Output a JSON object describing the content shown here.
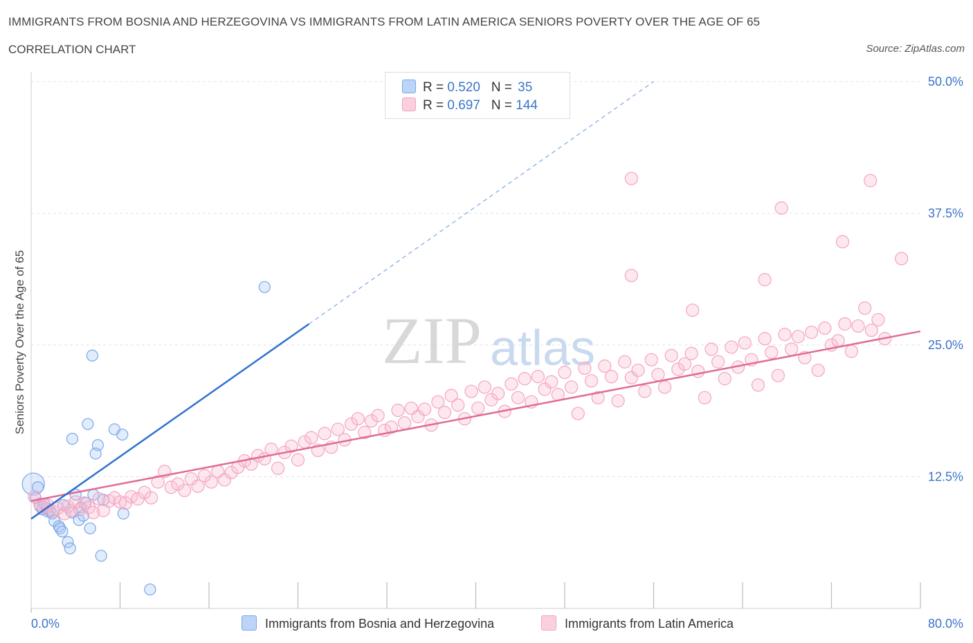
{
  "title": "IMMIGRANTS FROM BOSNIA AND HERZEGOVINA VS IMMIGRANTS FROM LATIN AMERICA SENIORS POVERTY OVER THE AGE OF 65",
  "subtitle": "CORRELATION CHART",
  "source": "Source: ZipAtlas.com",
  "watermark": {
    "zip": "ZIP",
    "atlas": "atlas"
  },
  "legend": {
    "rows": [
      {
        "r_label": "R = ",
        "r_value": "0.520",
        "n_label": "N = ",
        "n_value": "35",
        "color": "#aecbf5"
      },
      {
        "r_label": "R = ",
        "r_value": "0.697",
        "n_label": "N = ",
        "n_value": "144",
        "color": "#f7bdd0"
      }
    ]
  },
  "chart_data": {
    "type": "scatter",
    "xlabel": "",
    "ylabel": "Seniors Poverty Over the Age of 65",
    "xlim": [
      0,
      80
    ],
    "ylim": [
      0,
      50
    ],
    "x_tick_labels": [
      {
        "v": 0,
        "label": "0.0%"
      },
      {
        "v": 80,
        "label": "80.0%"
      }
    ],
    "y_tick_labels": [
      {
        "v": 12.5,
        "label": "12.5%"
      },
      {
        "v": 25,
        "label": "25.0%"
      },
      {
        "v": 37.5,
        "label": "37.5%"
      },
      {
        "v": 50,
        "label": "50.0%"
      }
    ],
    "grid": true,
    "series": [
      {
        "name": "Immigrants from Bosnia and Herzegovina",
        "color": "#7aa7e6",
        "line_color": "#2f6fcf",
        "trend": {
          "x0": 0,
          "y0": 8.5,
          "x1": 25,
          "y1": 27,
          "dash_x1": 56,
          "dash_y1": 50
        },
        "points": [
          [
            0.2,
            11.8,
            16
          ],
          [
            0.4,
            10.5,
            8
          ],
          [
            0.6,
            11.5,
            8
          ],
          [
            0.8,
            9.7,
            8
          ],
          [
            1.0,
            9.4,
            8
          ],
          [
            1.2,
            9.9,
            8
          ],
          [
            1.4,
            9.5,
            8
          ],
          [
            1.5,
            9.2,
            8
          ],
          [
            1.7,
            9.3,
            8
          ],
          [
            1.9,
            9.0,
            8
          ],
          [
            2.1,
            8.3,
            8
          ],
          [
            2.5,
            7.8,
            8
          ],
          [
            2.6,
            7.6,
            8
          ],
          [
            2.8,
            7.3,
            8
          ],
          [
            2.9,
            9.8,
            8
          ],
          [
            3.3,
            6.3,
            8
          ],
          [
            3.5,
            5.7,
            8
          ],
          [
            3.7,
            9.1,
            8
          ],
          [
            4.0,
            10.8,
            8
          ],
          [
            4.3,
            8.4,
            8
          ],
          [
            4.5,
            9.6,
            8
          ],
          [
            4.7,
            8.8,
            8
          ],
          [
            4.9,
            10.0,
            8
          ],
          [
            5.1,
            17.5,
            8
          ],
          [
            5.3,
            7.6,
            8
          ],
          [
            5.6,
            10.8,
            8
          ],
          [
            6.0,
            15.5,
            8
          ],
          [
            6.3,
            5.0,
            8
          ],
          [
            6.5,
            10.3,
            8
          ],
          [
            5.8,
            14.7,
            8
          ],
          [
            3.7,
            16.1,
            8
          ],
          [
            5.5,
            24.0,
            8
          ],
          [
            7.5,
            17.0,
            8
          ],
          [
            8.3,
            9.0,
            8
          ],
          [
            10.7,
            1.8,
            8
          ],
          [
            21.0,
            30.5,
            8
          ],
          [
            8.2,
            16.5,
            8
          ]
        ]
      },
      {
        "name": "Immigrants from Latin America",
        "color": "#f4a3bf",
        "line_color": "#e06b96",
        "trend": {
          "x0": 0,
          "y0": 10.2,
          "x1": 80,
          "y1": 26.3
        },
        "points": [
          [
            0.3,
            10.6,
            9
          ],
          [
            0.8,
            9.9,
            9
          ],
          [
            1.1,
            9.6,
            9
          ],
          [
            1.5,
            9.8,
            9
          ],
          [
            2.0,
            9.2,
            9
          ],
          [
            2.4,
            9.5,
            9
          ],
          [
            3.0,
            9.0,
            9
          ],
          [
            3.3,
            9.7,
            9
          ],
          [
            3.6,
            9.3,
            9
          ],
          [
            4.0,
            10.1,
            9
          ],
          [
            4.4,
            9.4,
            9
          ],
          [
            4.8,
            10.0,
            9
          ],
          [
            5.2,
            9.6,
            9
          ],
          [
            5.6,
            9.1,
            9
          ],
          [
            6.1,
            10.4,
            9
          ],
          [
            6.5,
            9.3,
            9
          ],
          [
            7.0,
            10.2,
            9
          ],
          [
            7.5,
            10.5,
            9
          ],
          [
            8.0,
            10.1,
            9
          ],
          [
            8.5,
            10.0,
            9
          ],
          [
            9.0,
            10.6,
            9
          ],
          [
            9.6,
            10.4,
            9
          ],
          [
            10.2,
            11.0,
            9
          ],
          [
            10.8,
            10.5,
            9
          ],
          [
            11.4,
            12.0,
            9
          ],
          [
            12.0,
            13.0,
            9
          ],
          [
            12.6,
            11.5,
            9
          ],
          [
            13.2,
            11.8,
            9
          ],
          [
            13.8,
            11.2,
            9
          ],
          [
            14.4,
            12.3,
            9
          ],
          [
            15.0,
            11.6,
            9
          ],
          [
            15.6,
            12.6,
            9
          ],
          [
            16.2,
            12.0,
            9
          ],
          [
            16.8,
            13.0,
            9
          ],
          [
            17.4,
            12.2,
            9
          ],
          [
            18.0,
            12.9,
            9
          ],
          [
            18.6,
            13.4,
            9
          ],
          [
            19.2,
            14.0,
            9
          ],
          [
            19.8,
            13.7,
            9
          ],
          [
            20.4,
            14.5,
            9
          ],
          [
            21.0,
            14.2,
            9
          ],
          [
            21.6,
            15.1,
            9
          ],
          [
            22.2,
            13.3,
            9
          ],
          [
            22.8,
            14.8,
            9
          ],
          [
            23.4,
            15.4,
            9
          ],
          [
            24.0,
            14.1,
            9
          ],
          [
            24.6,
            15.8,
            9
          ],
          [
            25.2,
            16.2,
            9
          ],
          [
            25.8,
            15.0,
            9
          ],
          [
            26.4,
            16.6,
            9
          ],
          [
            27.0,
            15.3,
            9
          ],
          [
            27.6,
            17.0,
            9
          ],
          [
            28.2,
            16.0,
            9
          ],
          [
            28.8,
            17.5,
            9
          ],
          [
            29.4,
            18.0,
            9
          ],
          [
            30.0,
            16.7,
            9
          ],
          [
            30.6,
            17.8,
            9
          ],
          [
            31.2,
            18.3,
            9
          ],
          [
            31.8,
            16.9,
            9
          ],
          [
            32.4,
            17.2,
            9
          ],
          [
            33.0,
            18.8,
            9
          ],
          [
            33.6,
            17.6,
            9
          ],
          [
            34.2,
            19.0,
            9
          ],
          [
            34.8,
            18.2,
            9
          ],
          [
            35.4,
            18.9,
            9
          ],
          [
            36.0,
            17.4,
            9
          ],
          [
            36.6,
            19.6,
            9
          ],
          [
            37.2,
            18.6,
            9
          ],
          [
            37.8,
            20.2,
            9
          ],
          [
            38.4,
            19.3,
            9
          ],
          [
            39.0,
            18.0,
            9
          ],
          [
            39.6,
            20.6,
            9
          ],
          [
            40.2,
            19.0,
            9
          ],
          [
            40.8,
            21.0,
            9
          ],
          [
            41.4,
            19.8,
            9
          ],
          [
            42.0,
            20.4,
            9
          ],
          [
            42.6,
            18.7,
            9
          ],
          [
            43.2,
            21.3,
            9
          ],
          [
            43.8,
            20.0,
            9
          ],
          [
            44.4,
            21.8,
            9
          ],
          [
            45.0,
            19.6,
            9
          ],
          [
            45.6,
            22.0,
            9
          ],
          [
            46.2,
            20.8,
            9
          ],
          [
            46.8,
            21.5,
            9
          ],
          [
            47.4,
            20.3,
            9
          ],
          [
            48.0,
            22.4,
            9
          ],
          [
            48.6,
            21.0,
            9
          ],
          [
            49.2,
            18.5,
            9
          ],
          [
            49.8,
            22.8,
            9
          ],
          [
            50.4,
            21.6,
            9
          ],
          [
            51.0,
            20.0,
            9
          ],
          [
            51.6,
            23.0,
            9
          ],
          [
            52.2,
            22.0,
            9
          ],
          [
            52.8,
            19.7,
            9
          ],
          [
            53.4,
            23.4,
            9
          ],
          [
            54.0,
            21.9,
            9
          ],
          [
            54.6,
            22.6,
            9
          ],
          [
            55.2,
            20.6,
            9
          ],
          [
            55.8,
            23.6,
            9
          ],
          [
            56.4,
            22.2,
            9
          ],
          [
            57.0,
            21.0,
            9
          ],
          [
            57.6,
            24.0,
            9
          ],
          [
            58.2,
            22.7,
            9
          ],
          [
            58.8,
            23.2,
            9
          ],
          [
            59.4,
            24.2,
            9
          ],
          [
            60.0,
            22.5,
            9
          ],
          [
            60.6,
            20.0,
            9
          ],
          [
            61.2,
            24.6,
            9
          ],
          [
            61.8,
            23.4,
            9
          ],
          [
            62.4,
            21.8,
            9
          ],
          [
            63.0,
            24.8,
            9
          ],
          [
            63.6,
            22.9,
            9
          ],
          [
            64.2,
            25.2,
            9
          ],
          [
            64.8,
            23.6,
            9
          ],
          [
            65.4,
            21.2,
            9
          ],
          [
            66.0,
            25.6,
            9
          ],
          [
            66.6,
            24.3,
            9
          ],
          [
            67.2,
            22.1,
            9
          ],
          [
            67.8,
            26.0,
            9
          ],
          [
            68.4,
            24.6,
            9
          ],
          [
            69.0,
            25.8,
            9
          ],
          [
            69.6,
            23.8,
            9
          ],
          [
            70.2,
            26.2,
            9
          ],
          [
            70.8,
            22.6,
            9
          ],
          [
            71.4,
            26.6,
            9
          ],
          [
            72.0,
            25.0,
            9
          ],
          [
            72.6,
            25.4,
            9
          ],
          [
            73.2,
            27.0,
            9
          ],
          [
            73.8,
            24.4,
            9
          ],
          [
            74.4,
            26.8,
            9
          ],
          [
            75.0,
            28.5,
            9
          ],
          [
            75.6,
            26.4,
            9
          ],
          [
            76.2,
            27.4,
            9
          ],
          [
            76.8,
            25.6,
            9
          ],
          [
            54.0,
            40.8,
            9
          ],
          [
            75.5,
            40.6,
            9
          ],
          [
            67.5,
            38.0,
            9
          ],
          [
            73.0,
            34.8,
            9
          ],
          [
            78.3,
            33.2,
            9
          ],
          [
            54.0,
            31.6,
            9
          ],
          [
            66.0,
            31.2,
            9
          ],
          [
            59.5,
            28.3,
            9
          ]
        ]
      }
    ]
  }
}
